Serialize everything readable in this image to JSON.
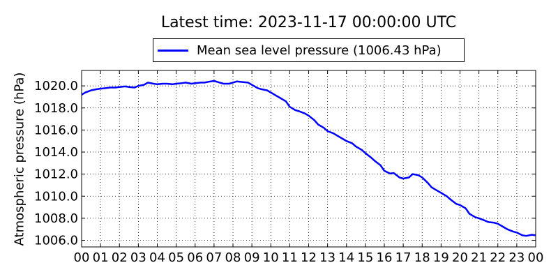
{
  "chart_data": {
    "type": "line",
    "title": "Latest time: 2023-11-17 00:00:00 UTC",
    "xlabel": "",
    "ylabel": "Atmospheric pressure (hPa)",
    "xlim": [
      0,
      24
    ],
    "ylim": [
      1005.4,
      1021.4
    ],
    "grid": true,
    "legend_position": "top",
    "x_ticks": [
      0,
      1,
      2,
      3,
      4,
      5,
      6,
      7,
      8,
      9,
      10,
      11,
      12,
      13,
      14,
      15,
      16,
      17,
      18,
      19,
      20,
      21,
      22,
      23,
      24
    ],
    "x_tick_labels": [
      "00",
      "01",
      "02",
      "03",
      "04",
      "05",
      "06",
      "07",
      "08",
      "09",
      "10",
      "11",
      "12",
      "13",
      "14",
      "15",
      "16",
      "17",
      "18",
      "19",
      "20",
      "21",
      "22",
      "23",
      "00"
    ],
    "y_ticks": [
      1006,
      1008,
      1010,
      1012,
      1014,
      1016,
      1018,
      1020
    ],
    "y_tick_labels": [
      "1006.0",
      "1008.0",
      "1010.0",
      "1012.0",
      "1014.0",
      "1016.0",
      "1018.0",
      "1020.0"
    ],
    "series": [
      {
        "name": "Mean sea level pressure (1006.43 hPa)",
        "color": "#0000ff",
        "x": [
          0,
          0.2,
          0.5,
          0.8,
          1.0,
          1.3,
          1.5,
          1.8,
          2.0,
          2.3,
          2.5,
          2.8,
          3.0,
          3.3,
          3.5,
          3.8,
          4.0,
          4.3,
          4.5,
          4.8,
          5.0,
          5.3,
          5.5,
          5.8,
          6.0,
          6.3,
          6.5,
          6.8,
          7.0,
          7.3,
          7.5,
          7.8,
          8.0,
          8.2,
          8.5,
          8.8,
          9.0,
          9.3,
          9.5,
          9.8,
          10.0,
          10.3,
          10.5,
          10.8,
          11.0,
          11.3,
          11.5,
          11.8,
          12.0,
          12.3,
          12.5,
          12.8,
          13.0,
          13.3,
          13.5,
          13.8,
          14.0,
          14.3,
          14.5,
          14.8,
          15.0,
          15.3,
          15.5,
          15.8,
          16.0,
          16.3,
          16.5,
          16.8,
          17.0,
          17.3,
          17.5,
          17.8,
          18.0,
          18.3,
          18.5,
          18.8,
          19.0,
          19.3,
          19.5,
          19.8,
          20.0,
          20.3,
          20.5,
          20.8,
          21.0,
          21.3,
          21.5,
          21.8,
          22.0,
          22.3,
          22.5,
          22.8,
          23.0,
          23.3,
          23.5,
          23.8,
          24.0
        ],
        "values": [
          1019.2,
          1019.4,
          1019.6,
          1019.7,
          1019.75,
          1019.8,
          1019.85,
          1019.85,
          1019.9,
          1019.95,
          1019.9,
          1019.85,
          1020.0,
          1020.1,
          1020.3,
          1020.2,
          1020.15,
          1020.2,
          1020.2,
          1020.15,
          1020.2,
          1020.25,
          1020.3,
          1020.2,
          1020.25,
          1020.3,
          1020.3,
          1020.4,
          1020.45,
          1020.3,
          1020.2,
          1020.2,
          1020.3,
          1020.4,
          1020.35,
          1020.3,
          1020.1,
          1019.8,
          1019.7,
          1019.6,
          1019.4,
          1019.1,
          1018.9,
          1018.6,
          1018.1,
          1017.8,
          1017.7,
          1017.5,
          1017.3,
          1016.9,
          1016.5,
          1016.2,
          1015.9,
          1015.7,
          1015.5,
          1015.2,
          1015.0,
          1014.8,
          1014.5,
          1014.2,
          1013.9,
          1013.5,
          1013.2,
          1012.8,
          1012.3,
          1012.05,
          1012.1,
          1011.7,
          1011.6,
          1011.7,
          1012.0,
          1011.9,
          1011.7,
          1011.2,
          1010.8,
          1010.5,
          1010.3,
          1010.0,
          1009.7,
          1009.3,
          1009.2,
          1008.9,
          1008.4,
          1008.1,
          1008.0,
          1007.8,
          1007.65,
          1007.6,
          1007.5,
          1007.2,
          1007.0,
          1006.8,
          1006.7,
          1006.45,
          1006.4,
          1006.5,
          1006.45
        ]
      }
    ]
  }
}
